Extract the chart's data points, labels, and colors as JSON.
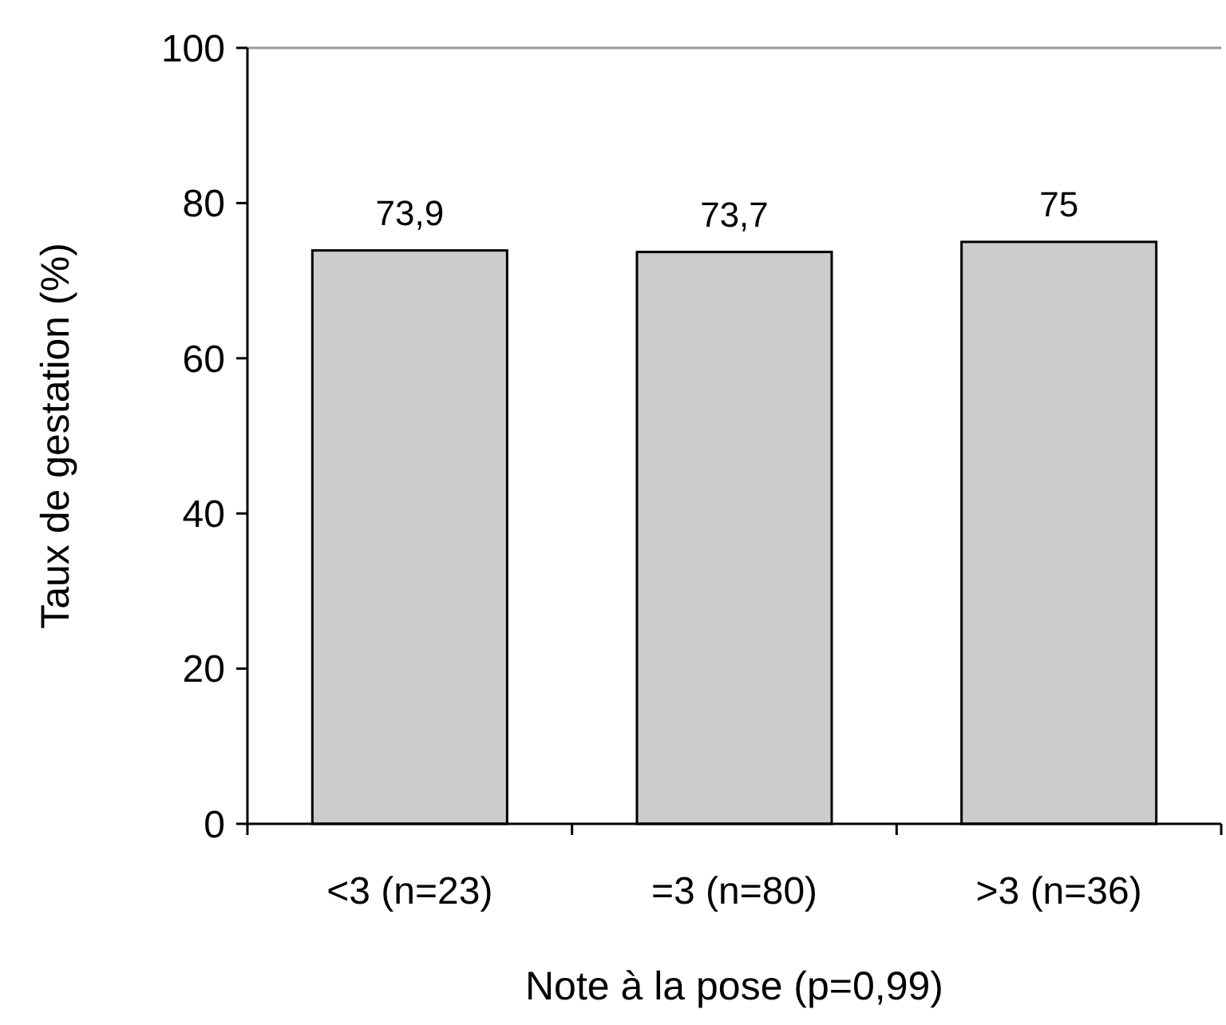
{
  "chart_data": {
    "type": "bar",
    "xlabel": "Note à la pose (p=0,99)",
    "ylabel": "Taux de gestation (%)",
    "categories": [
      "<3 (n=23)",
      "=3 (n=80)",
      ">3 (n=36)"
    ],
    "values": [
      73.9,
      73.7,
      75
    ],
    "value_labels": [
      "73,9",
      "73,7",
      "75"
    ],
    "color": "#cccccc",
    "ylim": [
      0,
      100
    ],
    "yticks": [
      0,
      20,
      40,
      60,
      80,
      100
    ],
    "grid": false
  }
}
